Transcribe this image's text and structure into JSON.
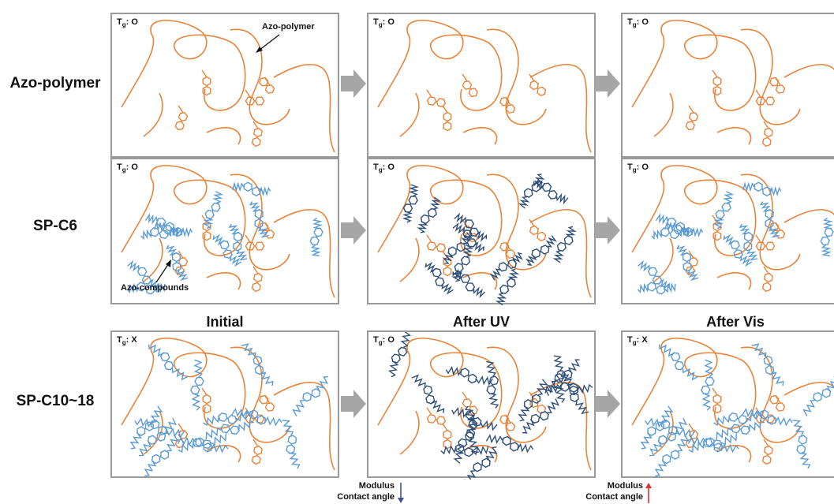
{
  "rows": [
    {
      "label": "Azo-polymer"
    },
    {
      "label": "SP-C6"
    },
    {
      "label": "SP-C10~18"
    }
  ],
  "columns": [
    "Initial",
    "After UV",
    "After Vis"
  ],
  "tg": {
    "prefix": "T",
    "sub": "g",
    "values": [
      [
        "O",
        "O",
        "O"
      ],
      [
        "O",
        "O",
        "O"
      ],
      [
        "X",
        "O",
        "X"
      ]
    ]
  },
  "callouts": {
    "polymer": "Azo-polymer",
    "compounds": "Azo-compounds"
  },
  "notes": {
    "uv": {
      "modulus": "Modulus",
      "contact_angle": "Contact angle",
      "direction": "down"
    },
    "vis": {
      "modulus": "Modulus",
      "contact_angle": "Contact angle",
      "direction": "up"
    }
  },
  "colors": {
    "polymer": "#e8843a",
    "compound_light": "#5b9bd5",
    "compound_dark": "#2e4f78",
    "panel_border": "#9a9a9a",
    "arrow": "#a6a6a6",
    "down_arrow": "#3a4fa0",
    "up_arrow": "#e03030"
  }
}
